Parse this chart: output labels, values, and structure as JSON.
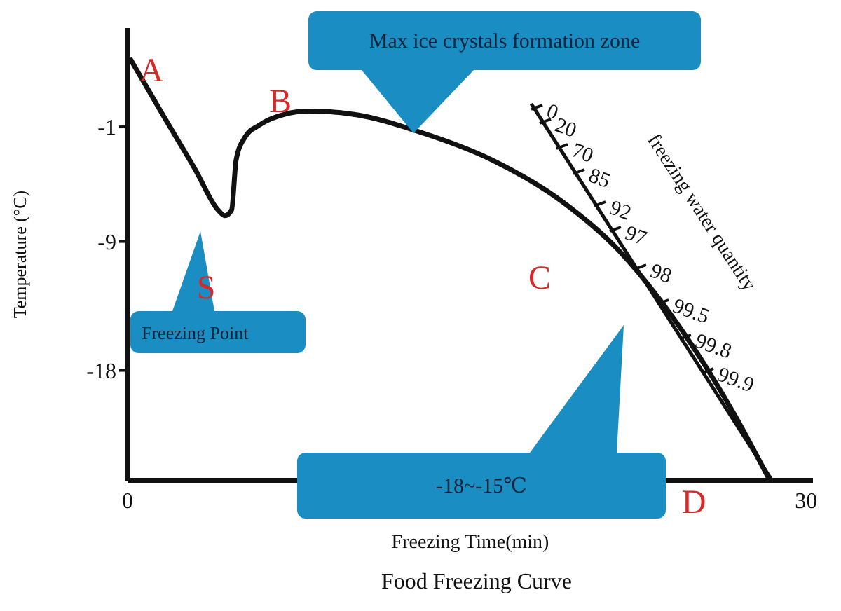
{
  "chart_data": {
    "type": "line",
    "title": "Food Freezing Curve",
    "xlabel": "Freezing Time(min)",
    "ylabel": "Temperature (°C)",
    "x": [
      0.1,
      1.5,
      3.0,
      4.0,
      4.3,
      4.6,
      4.8,
      5.2,
      5.8,
      7,
      8,
      9.9,
      13,
      16.1,
      19.2,
      21.7,
      23.5,
      25.1,
      26.8,
      28.4
    ],
    "series": [
      {
        "color": "#111111",
        "values": [
          3.8,
          0.0,
          -4.0,
          -6.8,
          -7.2,
          -6.8,
          -3.3,
          -1.7,
          -0.9,
          -0.1,
          0.1,
          -0.1,
          -1.4,
          -3.3,
          -6.2,
          -9.6,
          -13,
          -16.6,
          -21,
          -25.7
        ]
      }
    ],
    "xlim": [
      0,
      30.3
    ],
    "xticks": [
      0,
      30
    ],
    "ylim": [
      -25.7,
      5.9
    ],
    "yticks": [
      -1,
      -9,
      -18
    ],
    "marker": "none",
    "line_style": "solid",
    "annotations": [
      "A",
      "B",
      "S",
      "C",
      "D",
      "Max ice crystals formation zone",
      "Freezing Point",
      "-18~-15℃",
      "0",
      "20",
      "70",
      "85",
      "92",
      "97",
      "98",
      "99.5",
      "99.8",
      "99.9",
      "freezing water quantity"
    ]
  }
}
